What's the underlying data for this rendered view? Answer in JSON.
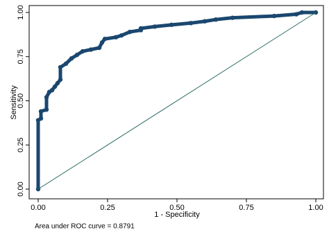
{
  "chart_data": {
    "type": "line",
    "x_label": "1 - Specificity",
    "y_label": "Sensitivity",
    "note": "Area under ROC curve = 0.8791",
    "xlim": [
      0,
      1
    ],
    "ylim": [
      0,
      1
    ],
    "xticks": [
      {
        "value": 0,
        "label": "0.00"
      },
      {
        "value": 0.25,
        "label": "0.25"
      },
      {
        "value": 0.5,
        "label": "0.50"
      },
      {
        "value": 0.75,
        "label": "0.75"
      },
      {
        "value": 1,
        "label": "1.00"
      }
    ],
    "yticks": [
      {
        "value": 0,
        "label": "0.00"
      },
      {
        "value": 0.25,
        "label": "0.25"
      },
      {
        "value": 0.5,
        "label": "0.50"
      },
      {
        "value": 0.75,
        "label": "0.75"
      },
      {
        "value": 1,
        "label": "1.00"
      }
    ],
    "series": [
      {
        "color": "#1a476f",
        "markers": true,
        "x": [
          0,
          0,
          0.01,
          0.01,
          0.03,
          0.03,
          0.04,
          0.05,
          0.06,
          0.07,
          0.08,
          0.08,
          0.1,
          0.12,
          0.14,
          0.16,
          0.19,
          0.22,
          0.23,
          0.24,
          0.28,
          0.3,
          0.33,
          0.37,
          0.37,
          0.42,
          0.48,
          0.55,
          0.6,
          0.64,
          0.7,
          0.85,
          0.93,
          0.95,
          1.0
        ],
        "values": [
          0,
          0.39,
          0.4,
          0.44,
          0.45,
          0.52,
          0.55,
          0.56,
          0.58,
          0.6,
          0.62,
          0.69,
          0.71,
          0.74,
          0.76,
          0.78,
          0.79,
          0.8,
          0.83,
          0.85,
          0.86,
          0.87,
          0.89,
          0.9,
          0.91,
          0.92,
          0.93,
          0.94,
          0.95,
          0.96,
          0.97,
          0.98,
          0.99,
          1.0,
          1.0
        ]
      },
      {
        "color": "#2d6d66",
        "markers": false,
        "x": [
          0,
          1
        ],
        "values": [
          0,
          1
        ]
      }
    ]
  }
}
